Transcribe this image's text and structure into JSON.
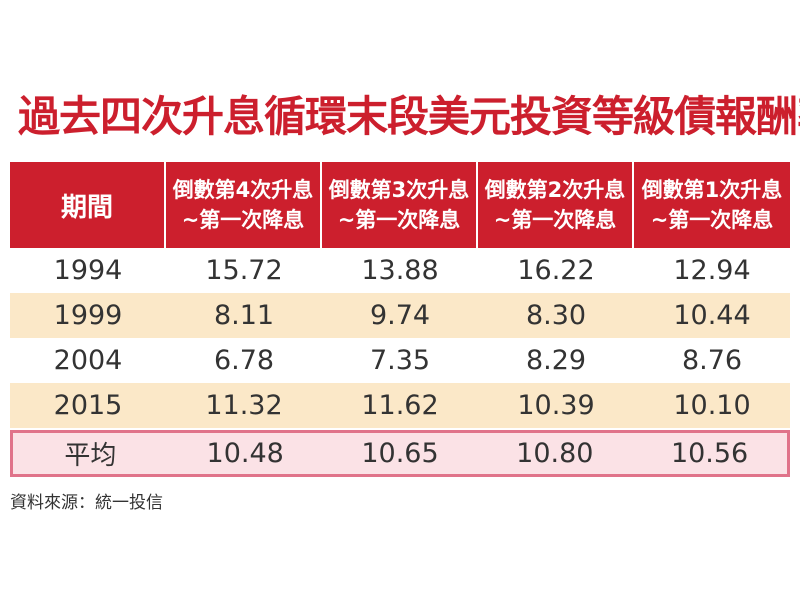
{
  "title": "過去四次升息循環末段美元投資等級債報酬率",
  "source": "資料來源：統一投信",
  "colors": {
    "accent": "#cc1f2d",
    "stripe": "#fbe8c8",
    "average_fill": "#fbe2e6",
    "average_border": "#e0738a"
  },
  "chart_data": {
    "type": "table",
    "title": "過去四次升息循環末段美元投資等級債報酬率",
    "columns": [
      {
        "line1": "期間",
        "line2": ""
      },
      {
        "line1": "倒數第4次升息",
        "line2": "~第一次降息"
      },
      {
        "line1": "倒數第3次升息",
        "line2": "~第一次降息"
      },
      {
        "line1": "倒數第2次升息",
        "line2": "~第一次降息"
      },
      {
        "line1": "倒數第1次升息",
        "line2": "~第一次降息"
      }
    ],
    "rows": [
      [
        "1994",
        "15.72",
        "13.88",
        "16.22",
        "12.94"
      ],
      [
        "1999",
        "8.11",
        "9.74",
        "8.30",
        "10.44"
      ],
      [
        "2004",
        "6.78",
        "7.35",
        "8.29",
        "8.76"
      ],
      [
        "2015",
        "11.32",
        "11.62",
        "10.39",
        "10.10"
      ]
    ],
    "average": [
      "平均",
      "10.48",
      "10.65",
      "10.80",
      "10.56"
    ],
    "source": "資料來源：統一投信"
  }
}
